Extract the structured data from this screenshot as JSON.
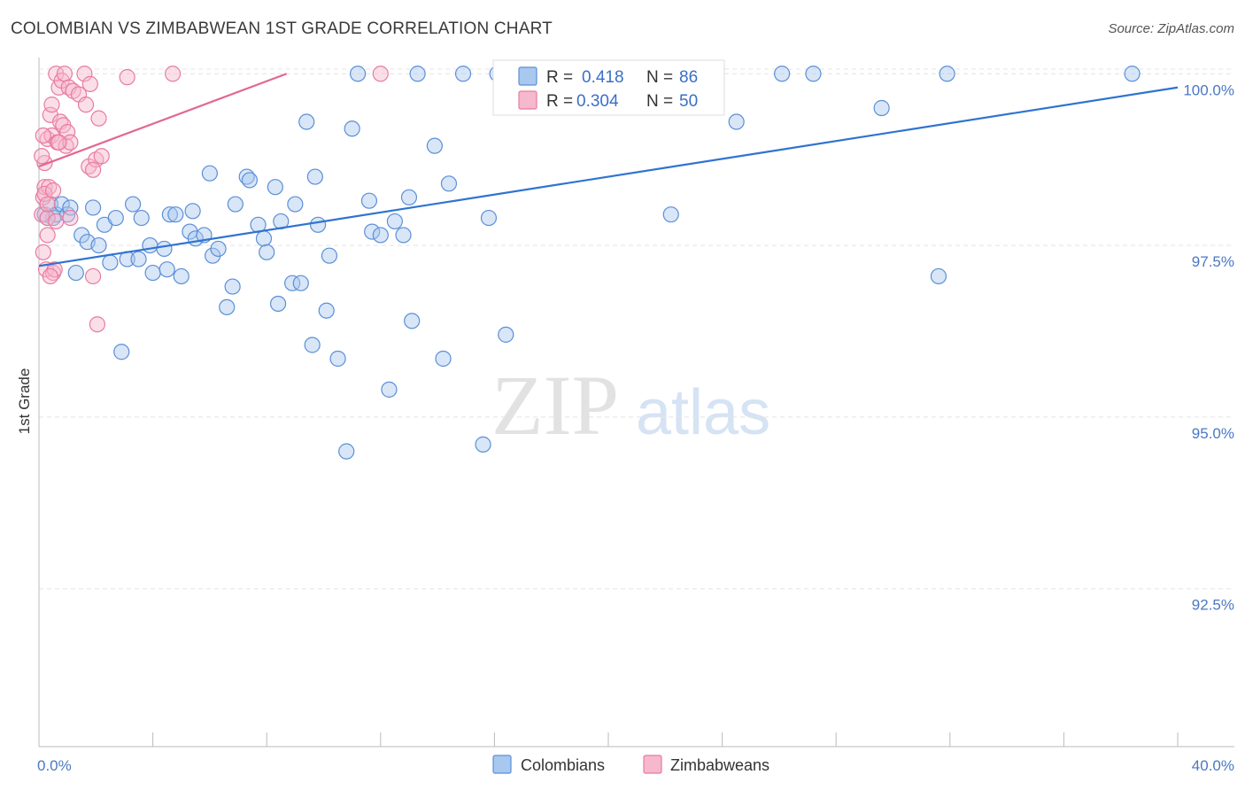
{
  "header": {
    "title": "COLOMBIAN VS ZIMBABWEAN 1ST GRADE CORRELATION CHART",
    "source": "Source: ZipAtlas.com"
  },
  "watermark": {
    "zip": "ZIP",
    "atlas": "atlas"
  },
  "chart_data": {
    "type": "scatter",
    "title": "COLOMBIAN VS ZIMBABWEAN 1ST GRADE CORRELATION CHART",
    "ylabel": "1st Grade",
    "xlabel": "",
    "xlim": [
      0,
      40
    ],
    "ylim": [
      90.2,
      100.3
    ],
    "x_tick_labels": [
      "0.0%",
      "40.0%"
    ],
    "y_ticks": [
      92.5,
      95.0,
      97.5,
      100.0
    ],
    "y_tick_labels": [
      "92.5%",
      "95.0%",
      "97.5%",
      "100.0%"
    ],
    "legend": {
      "r_label": "R =",
      "n_label": "N =",
      "entries": [
        {
          "name": "Colombians",
          "r": "0.418",
          "n": "86"
        },
        {
          "name": "Zimbabweans",
          "r": "0.304",
          "n": "50"
        }
      ]
    },
    "series": [
      {
        "name": "Colombians",
        "fill": "#a9c8ef",
        "stroke": "#5b8fd6",
        "line_color": "#2f73d0",
        "trend": {
          "x": [
            0,
            40
          ],
          "y": [
            97.2,
            99.8
          ]
        },
        "points": [
          [
            0.2,
            97.95
          ],
          [
            0.4,
            98.1
          ],
          [
            0.5,
            97.9
          ],
          [
            0.6,
            97.95
          ],
          [
            0.8,
            98.1
          ],
          [
            1.0,
            97.95
          ],
          [
            1.1,
            98.05
          ],
          [
            1.3,
            97.1
          ],
          [
            1.5,
            97.65
          ],
          [
            1.7,
            97.55
          ],
          [
            1.9,
            98.05
          ],
          [
            2.1,
            97.5
          ],
          [
            2.3,
            97.8
          ],
          [
            2.5,
            97.25
          ],
          [
            2.7,
            97.9
          ],
          [
            2.9,
            95.95
          ],
          [
            3.1,
            97.3
          ],
          [
            3.3,
            98.1
          ],
          [
            3.5,
            97.3
          ],
          [
            3.6,
            97.9
          ],
          [
            3.9,
            97.5
          ],
          [
            4.0,
            97.1
          ],
          [
            4.4,
            97.45
          ],
          [
            4.5,
            97.15
          ],
          [
            4.6,
            97.95
          ],
          [
            4.8,
            97.95
          ],
          [
            5.0,
            97.05
          ],
          [
            5.3,
            97.7
          ],
          [
            5.4,
            98.0
          ],
          [
            5.5,
            97.6
          ],
          [
            5.8,
            97.65
          ],
          [
            6.0,
            98.55
          ],
          [
            6.1,
            97.35
          ],
          [
            6.3,
            97.45
          ],
          [
            6.6,
            96.6
          ],
          [
            6.8,
            96.9
          ],
          [
            6.9,
            98.1
          ],
          [
            7.3,
            98.5
          ],
          [
            7.4,
            98.45
          ],
          [
            7.7,
            97.8
          ],
          [
            7.9,
            97.6
          ],
          [
            8.0,
            97.4
          ],
          [
            8.3,
            98.35
          ],
          [
            8.4,
            96.65
          ],
          [
            8.5,
            97.85
          ],
          [
            8.9,
            96.95
          ],
          [
            9.0,
            98.1
          ],
          [
            9.2,
            96.95
          ],
          [
            9.4,
            99.3
          ],
          [
            9.6,
            96.05
          ],
          [
            9.7,
            98.5
          ],
          [
            9.8,
            97.8
          ],
          [
            10.1,
            96.55
          ],
          [
            10.2,
            97.35
          ],
          [
            10.5,
            95.85
          ],
          [
            10.8,
            94.5
          ],
          [
            11.0,
            99.2
          ],
          [
            11.2,
            100.0
          ],
          [
            11.6,
            98.15
          ],
          [
            11.7,
            97.7
          ],
          [
            12.0,
            97.65
          ],
          [
            12.3,
            95.4
          ],
          [
            12.5,
            97.85
          ],
          [
            12.8,
            97.65
          ],
          [
            13.0,
            98.2
          ],
          [
            13.1,
            96.4
          ],
          [
            13.3,
            100.0
          ],
          [
            13.9,
            98.95
          ],
          [
            14.2,
            95.85
          ],
          [
            14.4,
            98.4
          ],
          [
            14.9,
            100.0
          ],
          [
            15.6,
            94.6
          ],
          [
            15.8,
            97.9
          ],
          [
            16.1,
            100.0
          ],
          [
            16.4,
            96.2
          ],
          [
            17.7,
            100.0
          ],
          [
            22.2,
            97.95
          ],
          [
            23.6,
            100.0
          ],
          [
            24.5,
            99.3
          ],
          [
            26.1,
            100.0
          ],
          [
            27.2,
            100.0
          ],
          [
            29.6,
            99.5
          ],
          [
            31.6,
            97.05
          ],
          [
            31.9,
            100.0
          ],
          [
            38.4,
            100.0
          ],
          [
            0.3,
            97.9
          ]
        ]
      },
      {
        "name": "Zimbabweans",
        "fill": "#f6b8cc",
        "stroke": "#e87ba0",
        "line_color": "#e3688f",
        "trend": {
          "x": [
            0,
            8.7
          ],
          "y": [
            98.65,
            100.0
          ]
        },
        "points": [
          [
            0.1,
            97.95
          ],
          [
            0.15,
            98.2
          ],
          [
            0.15,
            97.4
          ],
          [
            0.2,
            98.7
          ],
          [
            0.2,
            98.35
          ],
          [
            0.25,
            97.15
          ],
          [
            0.3,
            97.65
          ],
          [
            0.3,
            97.9
          ],
          [
            0.3,
            99.05
          ],
          [
            0.35,
            98.35
          ],
          [
            0.4,
            99.4
          ],
          [
            0.45,
            99.1
          ],
          [
            0.45,
            99.55
          ],
          [
            0.5,
            97.1
          ],
          [
            0.55,
            97.15
          ],
          [
            0.6,
            100.0
          ],
          [
            0.65,
            99.0
          ],
          [
            0.7,
            99.8
          ],
          [
            0.75,
            99.3
          ],
          [
            0.8,
            99.9
          ],
          [
            0.85,
            99.25
          ],
          [
            0.9,
            100.0
          ],
          [
            0.95,
            98.95
          ],
          [
            1.0,
            99.15
          ],
          [
            1.05,
            99.8
          ],
          [
            1.1,
            99.0
          ],
          [
            1.2,
            99.75
          ],
          [
            1.4,
            99.7
          ],
          [
            1.6,
            100.0
          ],
          [
            1.65,
            99.55
          ],
          [
            1.75,
            98.65
          ],
          [
            1.8,
            99.85
          ],
          [
            1.9,
            97.05
          ],
          [
            2.0,
            98.75
          ],
          [
            2.05,
            96.35
          ],
          [
            2.1,
            99.35
          ],
          [
            2.2,
            98.8
          ],
          [
            3.1,
            99.95
          ],
          [
            4.7,
            100.0
          ],
          [
            12.0,
            100.0
          ],
          [
            0.1,
            98.8
          ],
          [
            0.2,
            98.25
          ],
          [
            0.3,
            98.1
          ],
          [
            0.5,
            98.3
          ],
          [
            0.6,
            97.85
          ],
          [
            0.7,
            99.0
          ],
          [
            1.1,
            97.9
          ],
          [
            1.9,
            98.6
          ],
          [
            0.15,
            99.1
          ],
          [
            0.4,
            97.05
          ]
        ]
      }
    ]
  }
}
